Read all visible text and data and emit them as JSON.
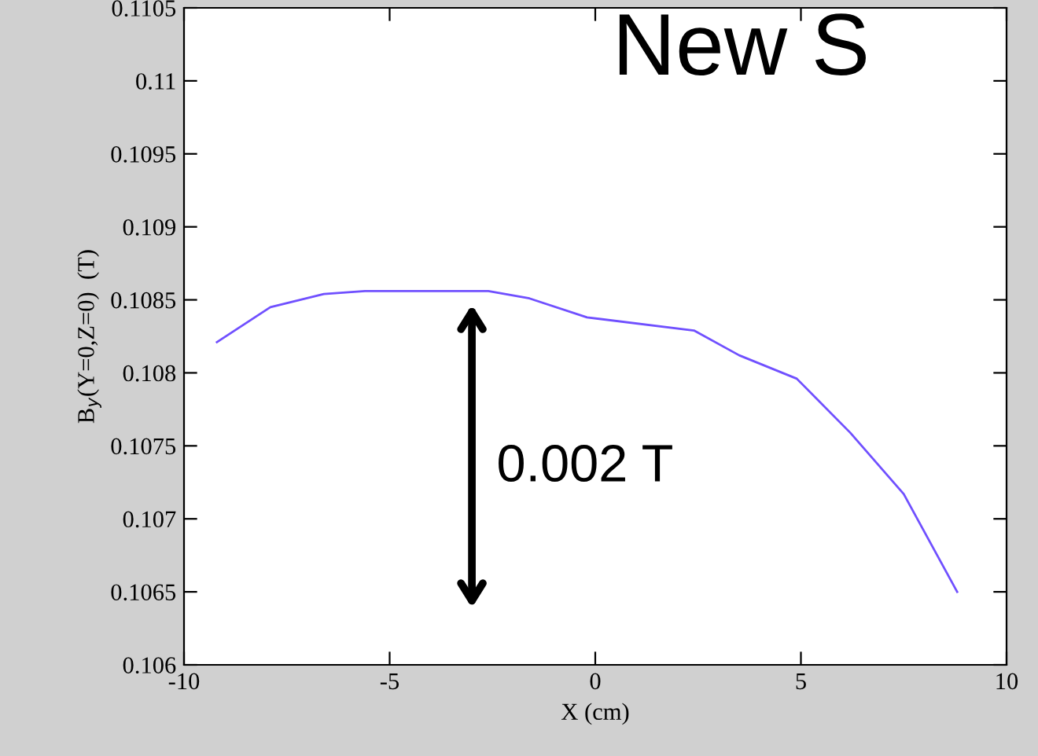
{
  "chart_data": {
    "type": "line",
    "xlabel": "X (cm)",
    "ylabel": "B$_{y}$(Y=0,Z=0)  (T)",
    "x": [
      -9.2,
      -7.9,
      -6.6,
      -5.6,
      -2.6,
      -1.6,
      -0.2,
      2.4,
      3.5,
      4.9,
      6.2,
      7.5,
      8.8
    ],
    "series": [
      {
        "color": "#7050ff",
        "values": [
          0.10821,
          0.10845,
          0.10854,
          0.10856,
          0.10856,
          0.10851,
          0.10838,
          0.10829,
          0.10812,
          0.10796,
          0.10759,
          0.10717,
          0.1065
        ]
      }
    ],
    "xlim": [
      -10,
      10
    ],
    "xticks": [
      -10,
      -5,
      0,
      5,
      10
    ],
    "ylim": [
      0.106,
      0.1105
    ],
    "yticks": [
      0.106,
      0.1065,
      0.107,
      0.1075,
      0.108,
      0.1085,
      0.109,
      0.1095,
      0.11,
      0.1105
    ],
    "grid": false,
    "legend": false,
    "marker": "none",
    "line_style": "solid",
    "annotations": [
      "0.002 T",
      "New S"
    ]
  }
}
